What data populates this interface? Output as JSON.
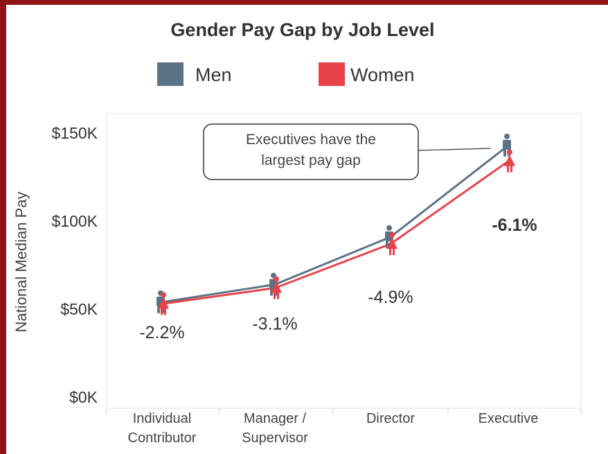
{
  "chart_data": {
    "type": "line",
    "title": "Gender Pay Gap by Job Level",
    "ylabel": "National Median Pay",
    "xlabel": "",
    "categories": [
      [
        "Individual",
        "Contributor"
      ],
      [
        "Manager /",
        "Supervisor"
      ],
      [
        "Director"
      ],
      [
        "Executive"
      ]
    ],
    "series": [
      {
        "name": "Men",
        "color": "#5b7387",
        "values": [
          54,
          64,
          91,
          143
        ]
      },
      {
        "name": "Women",
        "color": "#e8434b",
        "values": [
          53,
          62,
          87,
          134
        ]
      }
    ],
    "ylim": [
      0,
      160
    ],
    "yticks": [
      {
        "value": 0,
        "label": "$0K"
      },
      {
        "value": 50,
        "label": "$50K"
      },
      {
        "value": 100,
        "label": "$100K"
      },
      {
        "value": 150,
        "label": "$150K"
      }
    ],
    "gap_labels": [
      {
        "label": "-2.2%",
        "value": 37,
        "bold": false
      },
      {
        "label": "-3.1%",
        "value": 42,
        "bold": false
      },
      {
        "label": "-4.9%",
        "value": 57,
        "bold": false
      },
      {
        "label": "-6.1%",
        "value": 98,
        "bold": true
      }
    ],
    "legend": {
      "placement": "top"
    },
    "annotation": {
      "lines": [
        "Executives have the",
        "largest pay gap"
      ],
      "points_to": "Executive"
    },
    "grid": false
  }
}
